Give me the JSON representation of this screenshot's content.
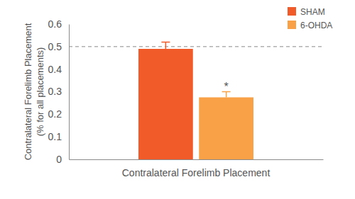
{
  "chart_data": {
    "type": "bar",
    "categories": [
      "Contralateral Forelimb Placement"
    ],
    "series": [
      {
        "name": "SHAM",
        "color": "#f15a29",
        "values": [
          0.49
        ],
        "errors": [
          0.03
        ]
      },
      {
        "name": "6-OHDA",
        "color": "#f8a147",
        "values": [
          0.275
        ],
        "errors": [
          0.025
        ],
        "annotations": [
          "*"
        ]
      }
    ],
    "y_label": [
      "Contralateral Forelimb Placement",
      "(% for all placements)"
    ],
    "ylim": [
      0,
      0.6
    ],
    "yticks": [
      0,
      0.1,
      0.2,
      0.3,
      0.4,
      0.5,
      0.6
    ],
    "hline": 0.5,
    "legend": "top-right",
    "grid": false
  }
}
